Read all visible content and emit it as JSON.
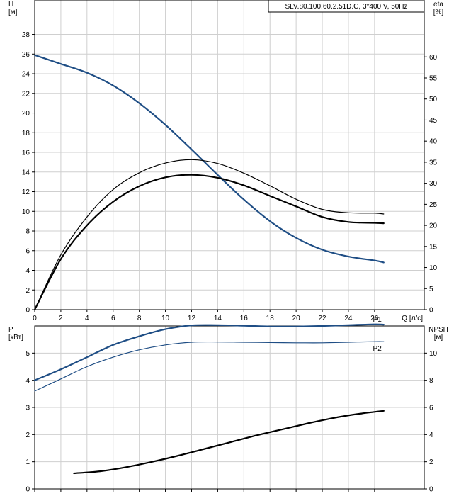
{
  "chart_data": [
    {
      "type": "line",
      "title": "SLV.80.100.60.2.51D.C, 3*400 V, 50Hz",
      "xlabel": "Q [л/с]",
      "ylabel": "H\n[м]",
      "y2label": "eta\n[%]",
      "xlim": [
        0,
        29.8
      ],
      "ylim": [
        0,
        31.5
      ],
      "y2lim": [
        0,
        73.5
      ],
      "x_ticks": [
        0,
        2,
        4,
        6,
        8,
        10,
        12,
        14,
        16,
        18,
        20,
        22,
        24,
        26
      ],
      "y_ticks": [
        0,
        2,
        4,
        6,
        8,
        10,
        12,
        14,
        16,
        18,
        20,
        22,
        24,
        26,
        28
      ],
      "y2_ticks": [
        0,
        5,
        10,
        15,
        20,
        25,
        30,
        35,
        40,
        45,
        50,
        55,
        60
      ],
      "grid": true,
      "series": [
        {
          "axis": "left",
          "color": "#1f4e85",
          "x": [
            0,
            2,
            4,
            6,
            8,
            10,
            12,
            14,
            16,
            18,
            20,
            22,
            24,
            26,
            26.7
          ],
          "values": [
            25.9,
            25.0,
            24.1,
            22.8,
            21.0,
            18.8,
            16.3,
            13.7,
            11.2,
            9.0,
            7.3,
            6.1,
            5.4,
            5.0,
            4.8
          ]
        },
        {
          "axis": "right",
          "color": "#000000",
          "width": 1.2,
          "x": [
            0,
            2,
            4,
            6,
            8,
            10,
            12,
            14,
            16,
            18,
            20,
            22,
            24,
            26,
            26.7
          ],
          "values": [
            0,
            13.0,
            22.0,
            28.5,
            32.5,
            34.8,
            35.6,
            34.7,
            32.4,
            29.4,
            26.2,
            23.8,
            23.0,
            22.9,
            22.7
          ]
        },
        {
          "axis": "right",
          "color": "#000000",
          "width": 2.2,
          "x": [
            0,
            2,
            4,
            6,
            8,
            10,
            12,
            14,
            16,
            18,
            20,
            22,
            24,
            26,
            26.7
          ],
          "values": [
            0,
            12.0,
            20.0,
            25.6,
            29.3,
            31.4,
            32.0,
            31.3,
            29.5,
            27.0,
            24.5,
            22.0,
            20.8,
            20.6,
            20.5
          ]
        }
      ]
    },
    {
      "type": "line",
      "xlabel": "",
      "ylabel": "P\n[кВт]",
      "y2label": "NPSH\n[м]",
      "xlim": [
        0,
        29.8
      ],
      "ylim": [
        0,
        6.0
      ],
      "y2lim": [
        0,
        12.0
      ],
      "y_ticks": [
        0,
        1,
        2,
        3,
        4,
        5
      ],
      "y2_ticks": [
        0,
        2,
        4,
        6,
        8,
        10
      ],
      "grid": true,
      "series": [
        {
          "name": "P1",
          "axis": "left",
          "color": "#1f4e85",
          "width": 2.2,
          "x": [
            0,
            2,
            4,
            6,
            8,
            10,
            12,
            14,
            16,
            18,
            20,
            22,
            24,
            26,
            26.7
          ],
          "values": [
            4.0,
            4.4,
            4.85,
            5.3,
            5.62,
            5.88,
            6.02,
            6.03,
            6.01,
            5.98,
            5.98,
            6.0,
            6.03,
            6.06,
            6.05
          ]
        },
        {
          "name": "P2",
          "axis": "left",
          "color": "#1f4e85",
          "width": 1.2,
          "x": [
            0,
            2,
            4,
            6,
            8,
            10,
            12,
            14,
            16,
            18,
            20,
            22,
            24,
            26,
            26.7
          ],
          "values": [
            3.6,
            4.05,
            4.5,
            4.85,
            5.12,
            5.3,
            5.4,
            5.41,
            5.4,
            5.39,
            5.38,
            5.38,
            5.4,
            5.42,
            5.42
          ]
        },
        {
          "axis": "right",
          "color": "#000000",
          "width": 2.2,
          "x": [
            3,
            5,
            7,
            9,
            11,
            13,
            15,
            17,
            19,
            21,
            23,
            25,
            26.7
          ],
          "values": [
            1.15,
            1.3,
            1.6,
            2.0,
            2.45,
            2.95,
            3.45,
            3.95,
            4.4,
            4.85,
            5.25,
            5.55,
            5.75
          ]
        }
      ]
    }
  ]
}
